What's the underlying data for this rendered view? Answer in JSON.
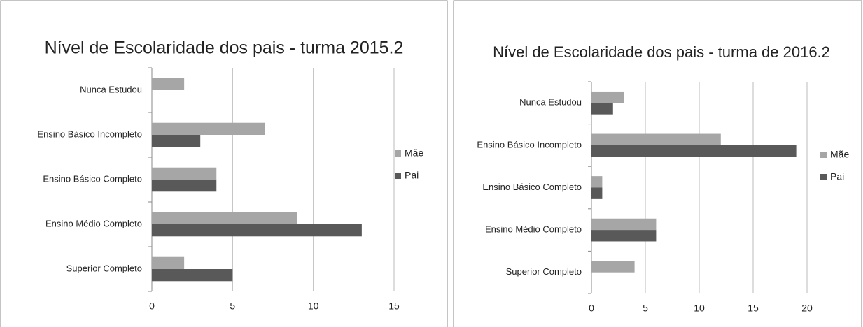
{
  "chart_data": [
    {
      "type": "bar",
      "orientation": "horizontal",
      "title": "Nível de Escolaridade dos pais - turma 2015.2",
      "categories": [
        "Nunca Estudou",
        "Ensino Básico Incompleto",
        "Ensino Básico Completo",
        "Ensino Médio Completo",
        "Superior Completo"
      ],
      "series": [
        {
          "name": "Mãe",
          "color": "#a6a6a6",
          "values": [
            2,
            7,
            4,
            9,
            2
          ]
        },
        {
          "name": "Pai",
          "color": "#595959",
          "values": [
            0,
            3,
            4,
            13,
            5
          ]
        }
      ],
      "xlim": [
        0,
        15
      ],
      "xticks": [
        0,
        5,
        10,
        15
      ],
      "grid": true,
      "legend": "right"
    },
    {
      "type": "bar",
      "orientation": "horizontal",
      "title": "Nível de Escolaridade  dos pais - turma de 2016.2",
      "categories": [
        "Nunca Estudou",
        "Ensino Básico Incompleto",
        "Ensino Básico Completo",
        "Ensino Médio Completo",
        "Superior Completo"
      ],
      "series": [
        {
          "name": "Mãe",
          "color": "#a6a6a6",
          "values": [
            3,
            12,
            1,
            6,
            4
          ]
        },
        {
          "name": "Pai",
          "color": "#595959",
          "values": [
            2,
            19,
            1,
            6,
            0
          ]
        }
      ],
      "xlim": [
        0,
        20
      ],
      "xticks": [
        0,
        5,
        10,
        15,
        20
      ],
      "grid": true,
      "legend": "right"
    }
  ]
}
